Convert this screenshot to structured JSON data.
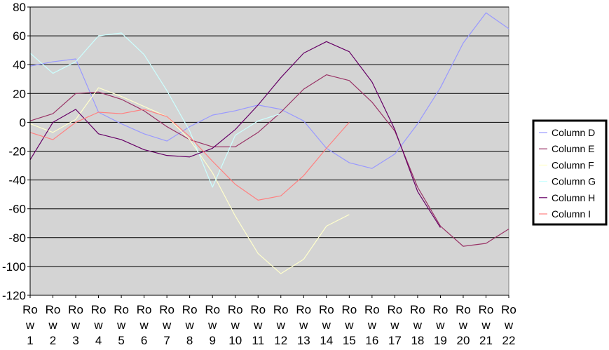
{
  "chart_data": {
    "type": "line",
    "title": "",
    "xlabel": "",
    "ylabel": "",
    "ylim": [
      -120,
      80
    ],
    "yticks": [
      -120,
      -100,
      -80,
      -60,
      -40,
      -20,
      0,
      20,
      40,
      60,
      80
    ],
    "grid": true,
    "legend_position": "right",
    "plot_background": "#d4d4d4",
    "categories": [
      "Row 1",
      "Row 2",
      "Row 3",
      "Row 4",
      "Row 5",
      "Row 6",
      "Row 7",
      "Row 8",
      "Row 9",
      "Row 10",
      "Row 11",
      "Row 12",
      "Row 13",
      "Row 14",
      "Row 15",
      "Row 16",
      "Row 17",
      "Row 18",
      "Row 19",
      "Row 20",
      "Row 21",
      "Row 22"
    ],
    "series": [
      {
        "name": "Column D",
        "color": "#9999ff",
        "values": [
          39,
          42,
          44,
          7,
          -1,
          -8,
          -13,
          -3,
          5,
          8,
          12,
          9,
          1,
          -18,
          -28,
          -32,
          -22,
          -1,
          24,
          55,
          76,
          65
        ]
      },
      {
        "name": "Column E",
        "color": "#993366",
        "values": [
          1,
          6,
          20,
          21,
          16,
          8,
          -3,
          -12,
          -17,
          -17,
          -7,
          7,
          23,
          33,
          29,
          14,
          -6,
          -45,
          -72,
          -86,
          -84,
          -74
        ]
      },
      {
        "name": "Column F",
        "color": "#ffffcc",
        "values": [
          -1,
          -7,
          2,
          24,
          18,
          11,
          4,
          -12,
          -35,
          -65,
          -91,
          -105,
          -95,
          -72,
          -64,
          null,
          null,
          null,
          null,
          null,
          null,
          null
        ]
      },
      {
        "name": "Column G",
        "color": "#ccffff",
        "values": [
          48,
          34,
          42,
          60,
          62,
          47,
          22,
          -6,
          -45,
          -9,
          1,
          6,
          null,
          null,
          null,
          null,
          null,
          null,
          null,
          null,
          null,
          null
        ]
      },
      {
        "name": "Column H",
        "color": "#660066",
        "values": [
          -26,
          0,
          9,
          -8,
          -12,
          -19,
          -23,
          -24,
          -18,
          -5,
          12,
          31,
          48,
          56,
          49,
          28,
          -5,
          -48,
          -73,
          null,
          null,
          null
        ]
      },
      {
        "name": "Column I",
        "color": "#ff8080",
        "values": [
          -7,
          -12,
          0,
          7,
          6,
          9,
          4,
          -10,
          -27,
          -43,
          -54,
          -51,
          -37,
          -18,
          0,
          null,
          null,
          null,
          null,
          null,
          null,
          null
        ]
      }
    ]
  }
}
